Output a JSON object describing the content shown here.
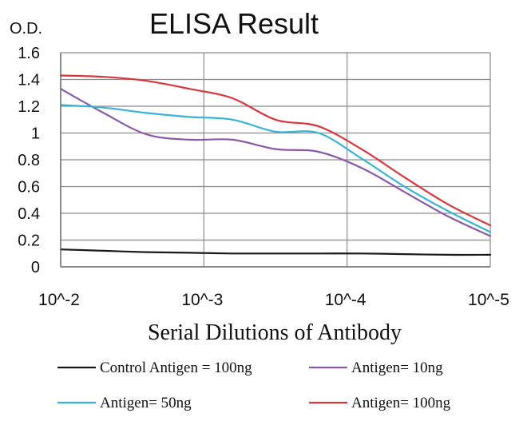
{
  "chart_data": {
    "type": "line",
    "title": "ELISA Result",
    "ylabel": "O.D.",
    "xlabel": "Serial Dilutions of Antibody",
    "x_categories": [
      "10^-2",
      "10^-3",
      "10^-4",
      "10^-5"
    ],
    "x": [
      0,
      1,
      2,
      3,
      4,
      5,
      6,
      7,
      8,
      9,
      10
    ],
    "ylim": [
      0,
      1.6
    ],
    "yticks": [
      0,
      0.2,
      0.4,
      0.6,
      0.8,
      1,
      1.2,
      1.4,
      1.6
    ],
    "ytick_labels": [
      "0",
      "0.2",
      "0.4",
      "0.6",
      "0.8",
      "1",
      "1.2",
      "1.4",
      "1.6"
    ],
    "grid": true,
    "legend_position": "bottom",
    "series": [
      {
        "name": "Control Antigen = 100ng",
        "color": "#1a1a1a",
        "values": [
          0.13,
          0.12,
          0.11,
          0.105,
          0.1,
          0.1,
          0.1,
          0.1,
          0.095,
          0.09,
          0.09
        ]
      },
      {
        "name": "Antigen= 10ng",
        "color": "#8a5aa8",
        "values": [
          1.33,
          1.15,
          0.99,
          0.95,
          0.95,
          0.88,
          0.86,
          0.74,
          0.56,
          0.38,
          0.23
        ]
      },
      {
        "name": "Antigen= 50ng",
        "color": "#37b4d6",
        "values": [
          1.21,
          1.19,
          1.15,
          1.12,
          1.1,
          1.01,
          1.0,
          0.81,
          0.6,
          0.42,
          0.26
        ]
      },
      {
        "name": "Antigen= 100ng",
        "color": "#d9363e",
        "values": [
          1.43,
          1.42,
          1.39,
          1.33,
          1.26,
          1.1,
          1.05,
          0.88,
          0.67,
          0.47,
          0.31
        ]
      }
    ]
  }
}
